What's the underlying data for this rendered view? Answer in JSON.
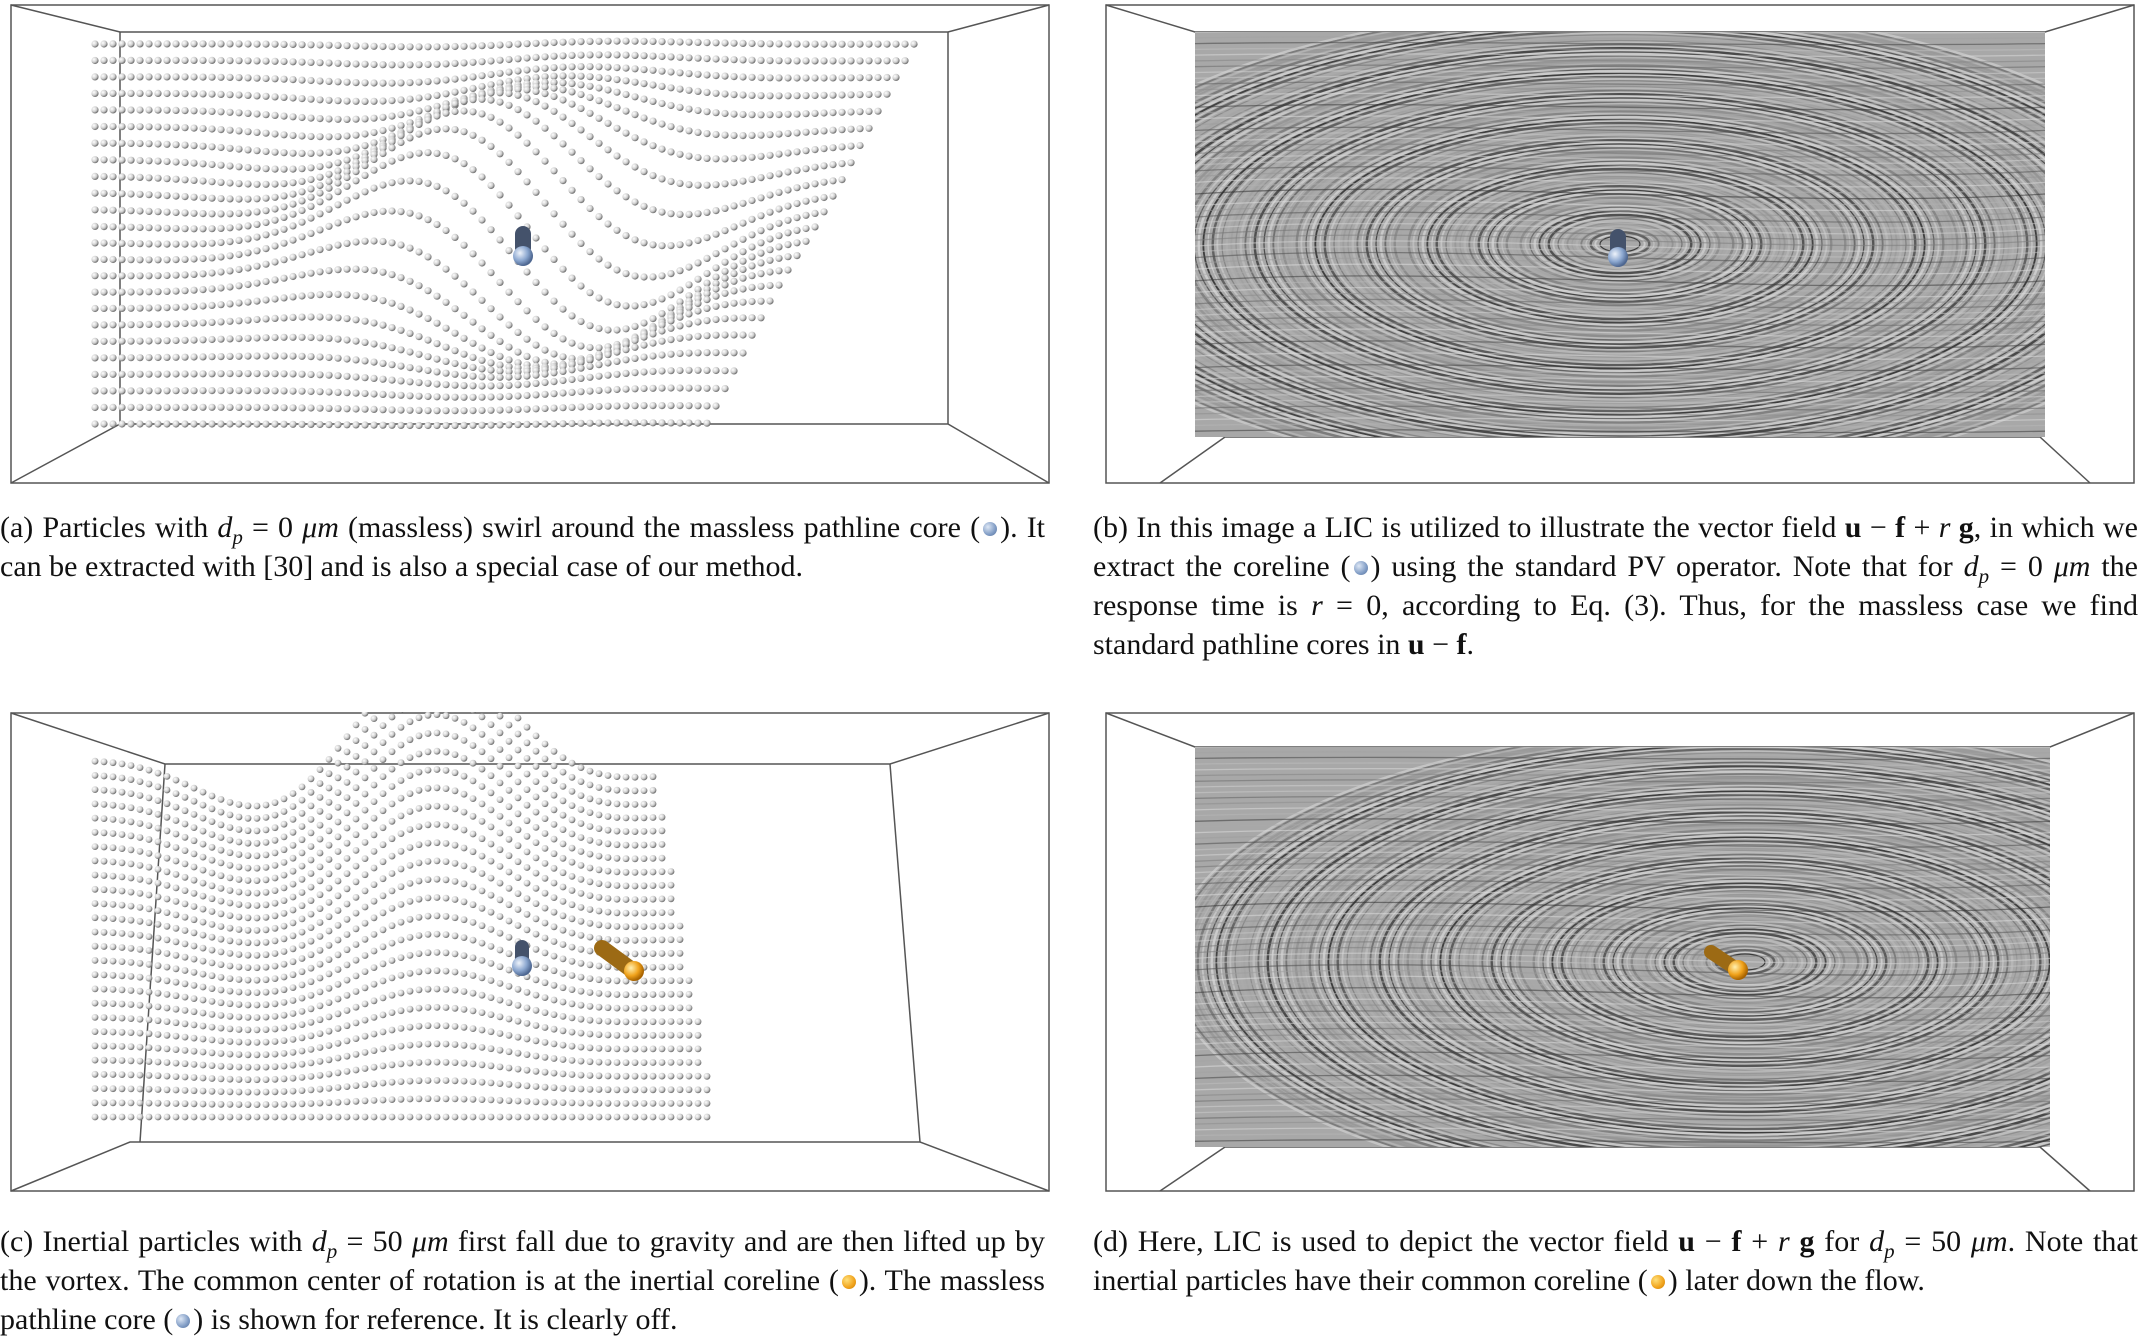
{
  "colors": {
    "massless_core": "#8aa6cf",
    "inertial_core": "#f0a21b",
    "lic_gray": "#9a9a9a",
    "frame": "#555555"
  },
  "panels": {
    "a": {
      "label": "(a)",
      "t1": "Particles with ",
      "var_d": "d",
      "sub_p": "p",
      "eq": " = 0 ",
      "mu": "μm",
      "t2": " (massless) swirl around the massless pathline core (",
      "t3": "). It can be extracted with [30] and is also a special case of our method.",
      "marker": "blue-dot-icon"
    },
    "b": {
      "label": "(b)",
      "t1": "In this image a LIC is utilized to illustrate the vector field ",
      "bu": "u",
      "minus": " − ",
      "bf": "f",
      "plus": " + ",
      "r": "r",
      "bg": "g",
      "t2": ", in which we extract the coreline (",
      "t3": ") using the standard PV operator. Note that for ",
      "var_d": "d",
      "sub_p": "p",
      "eq": " = 0 ",
      "mu": "μm",
      "t4": " the response time is ",
      "r2": "r",
      "eq2": " = 0, according to Eq. (3). Thus, for the massless case we find standard pathline cores in ",
      "bu2": "u",
      "minus2": " − ",
      "bf2": "f",
      "end": "."
    },
    "c": {
      "label": "(c)",
      "t1": "Inertial particles with ",
      "var_d": "d",
      "sub_p": "p",
      "eq": " = 50 ",
      "mu": "μm",
      "t2": " first fall due to gravity and are then lifted up by the vortex. The common center of rotation is at the inertial coreline (",
      "t3": "). The massless pathline core (",
      "t4": ") is shown for reference. It is clearly off."
    },
    "d": {
      "label": "(d)",
      "t1": "Here, LIC is used to depict the vector field ",
      "bu": "u",
      "minus": " − ",
      "bf": "f",
      "plus": " + ",
      "r": "r",
      "bg": "g",
      "t2": " for ",
      "var_d": "d",
      "sub_p": "p",
      "eq": " = 50 ",
      "mu": "μm",
      "t3": ". Note that inertial particles have their common coreline (",
      "t4": ") later down the flow."
    }
  }
}
